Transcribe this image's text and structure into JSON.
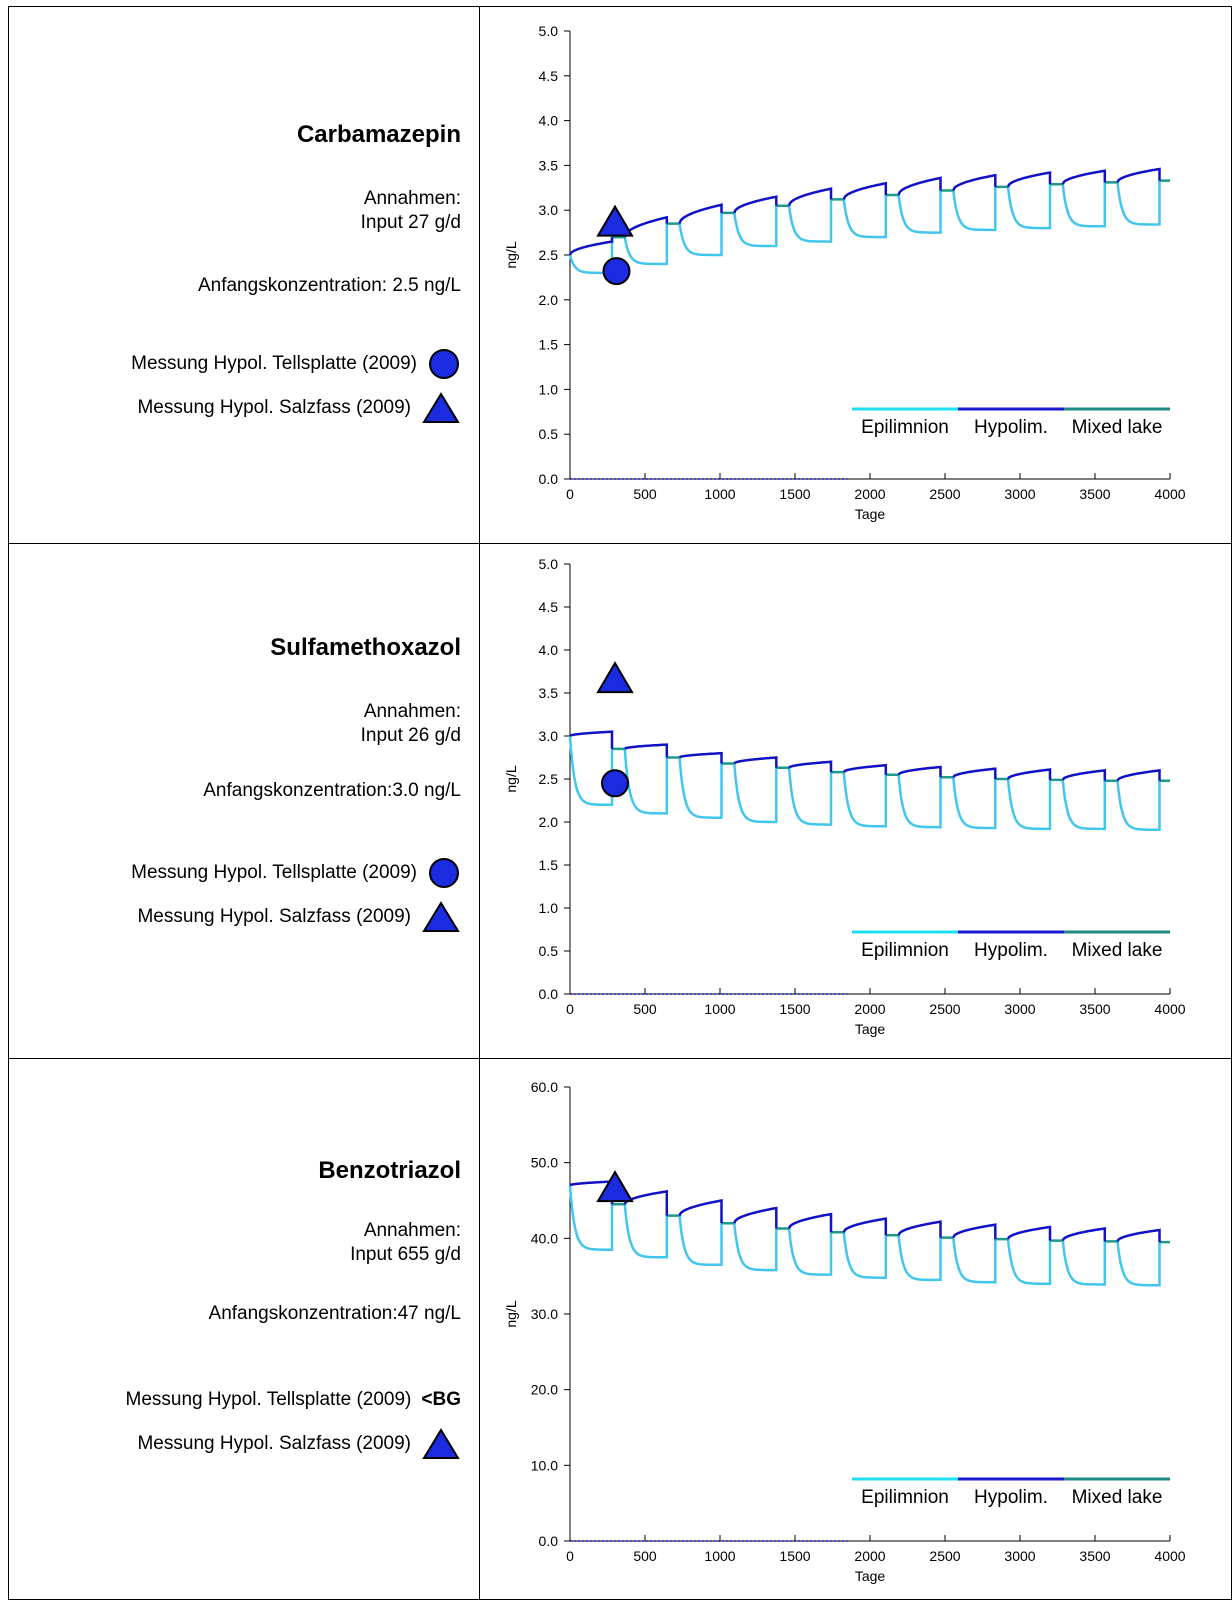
{
  "rows": [
    {
      "title": "Carbamazepin",
      "assumptions_label": "Annahmen:",
      "input": "Input 27 g/d",
      "initial": "Anfangskonzentration: 2.5 ng/L",
      "measurements": [
        {
          "label": "Messung Hypol. Tellsplatte (2009)",
          "icon": "circle-marker-icon",
          "value_text": ""
        },
        {
          "label": "Messung Hypol. Salzfass (2009)",
          "icon": "triangle-marker-icon",
          "value_text": ""
        }
      ]
    },
    {
      "title": "Sulfamethoxazol",
      "assumptions_label": "Annahmen:",
      "input": "Input 26 g/d",
      "initial": "Anfangskonzentration:3.0 ng/L",
      "measurements": [
        {
          "label": "Messung Hypol. Tellsplatte (2009)",
          "icon": "circle-marker-icon",
          "value_text": ""
        },
        {
          "label": "Messung Hypol. Salzfass (2009)",
          "icon": "triangle-marker-icon",
          "value_text": ""
        }
      ]
    },
    {
      "title": "Benzotriazol",
      "assumptions_label": "Annahmen:",
      "input": "Input 655 g/d",
      "initial": "Anfangskonzentration:47 ng/L",
      "measurements": [
        {
          "label": "Messung Hypol. Tellsplatte (2009)",
          "icon": "",
          "value_text": "<BG"
        },
        {
          "label": "Messung Hypol. Salzfass (2009)",
          "icon": "triangle-marker-icon",
          "value_text": ""
        }
      ]
    }
  ],
  "colors": {
    "epilimnion": "#42c6ee",
    "hypolimnion": "#1111c8",
    "mixed": "#1e9a8a",
    "marker_fill": "#1a2be0",
    "legend_epi": "#1fe0f2",
    "legend_hypo": "#1a1ad0",
    "legend_mixed": "#1f8a82"
  },
  "chart_data": [
    {
      "type": "line",
      "xlabel": "Tage",
      "ylabel": "ng/L",
      "xlim": [
        0,
        4000
      ],
      "ylim": [
        0,
        5
      ],
      "xticks": [
        "0",
        "500",
        "1000",
        "1500",
        "2000",
        "2500",
        "3000",
        "3500",
        "4000"
      ],
      "yticks": [
        "0.0",
        "0.5",
        "1.0",
        "1.5",
        "2.0",
        "2.5",
        "3.0",
        "3.5",
        "4.0",
        "4.5",
        "5.0"
      ],
      "legend": [
        "Epilimnion",
        "Hypolim.",
        "Mixed lake"
      ],
      "legend_position": "bottom-right",
      "cycle_days": 365,
      "strat_days": 280,
      "mix_start": [
        0,
        2.5,
        2.7,
        2.85,
        2.97,
        3.05,
        3.12,
        3.17,
        3.22,
        3.26,
        3.29,
        3.31
      ],
      "hypo_end": [
        2.65,
        2.92,
        3.06,
        3.15,
        3.24,
        3.3,
        3.36,
        3.39,
        3.42,
        3.44,
        3.46
      ],
      "epi_min": [
        2.3,
        2.4,
        2.5,
        2.6,
        2.65,
        2.7,
        2.75,
        2.78,
        2.8,
        2.82,
        2.84
      ],
      "mix_end_final": 3.33,
      "measurements": [
        {
          "series": "Messung Hypol. Tellsplatte (2009)",
          "marker": "circle",
          "x": 310,
          "y": 2.32
        },
        {
          "series": "Messung Hypol. Salzfass (2009)",
          "marker": "triangle",
          "x": 300,
          "y": 2.85
        }
      ]
    },
    {
      "type": "line",
      "xlabel": "Tage",
      "ylabel": "ng/L",
      "xlim": [
        0,
        4000
      ],
      "ylim": [
        0,
        5
      ],
      "xticks": [
        "0",
        "500",
        "1000",
        "1500",
        "2000",
        "2500",
        "3000",
        "3500",
        "4000"
      ],
      "yticks": [
        "0.0",
        "0.5",
        "1.0",
        "1.5",
        "2.0",
        "2.5",
        "3.0",
        "3.5",
        "4.0",
        "4.5",
        "5.0"
      ],
      "legend": [
        "Epilimnion",
        "Hypolim.",
        "Mixed lake"
      ],
      "legend_position": "bottom-right",
      "cycle_days": 365,
      "strat_days": 280,
      "mix_start": [
        0,
        3.0,
        2.85,
        2.75,
        2.68,
        2.63,
        2.58,
        2.55,
        2.52,
        2.5,
        2.49,
        2.48
      ],
      "hypo_end": [
        3.05,
        2.9,
        2.8,
        2.75,
        2.7,
        2.66,
        2.64,
        2.62,
        2.61,
        2.6,
        2.6
      ],
      "epi_min": [
        2.2,
        2.1,
        2.05,
        2.0,
        1.97,
        1.95,
        1.94,
        1.93,
        1.92,
        1.92,
        1.91
      ],
      "mix_end_final": 2.48,
      "measurements": [
        {
          "series": "Messung Hypol. Tellsplatte (2009)",
          "marker": "circle",
          "x": 300,
          "y": 2.45
        },
        {
          "series": "Messung Hypol. Salzfass (2009)",
          "marker": "triangle",
          "x": 300,
          "y": 3.65
        }
      ]
    },
    {
      "type": "line",
      "xlabel": "Tage",
      "ylabel": "ng/L",
      "xlim": [
        0,
        4000
      ],
      "ylim": [
        0,
        60
      ],
      "xticks": [
        "0",
        "500",
        "1000",
        "1500",
        "2000",
        "2500",
        "3000",
        "3500",
        "4000"
      ],
      "yticks": [
        "0.0",
        "10.0",
        "20.0",
        "30.0",
        "40.0",
        "50.0",
        "60.0"
      ],
      "legend": [
        "Epilimnion",
        "Hypolim.",
        "Mixed lake"
      ],
      "legend_position": "bottom-right",
      "cycle_days": 365,
      "strat_days": 280,
      "mix_start": [
        0,
        47,
        44.5,
        43,
        42,
        41.3,
        40.8,
        40.4,
        40.1,
        39.9,
        39.7,
        39.6
      ],
      "hypo_end": [
        47.5,
        46.2,
        45,
        44,
        43.2,
        42.6,
        42.2,
        41.8,
        41.5,
        41.3,
        41.1
      ],
      "epi_min": [
        38.5,
        37.5,
        36.5,
        35.8,
        35.2,
        34.8,
        34.5,
        34.2,
        34.0,
        33.9,
        33.8
      ],
      "mix_end_final": 39.5,
      "measurements": [
        {
          "series": "Messung Hypol. Salzfass (2009)",
          "marker": "triangle",
          "x": 300,
          "y": 46.5
        }
      ]
    }
  ]
}
